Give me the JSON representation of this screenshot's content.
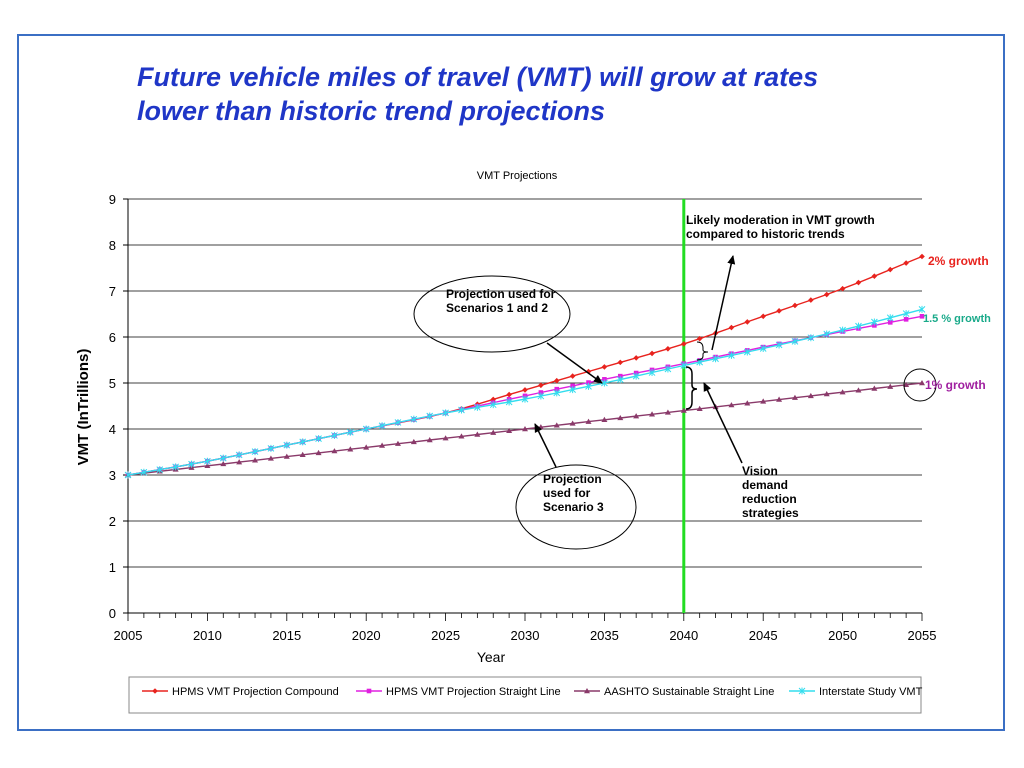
{
  "slide": {
    "title_line1": "Future vehicle miles of travel (VMT) will grow at rates",
    "title_line2": "lower than historic trend projections"
  },
  "annotations": {
    "moderation": "Likely moderation in VMT growth compared to historic trends",
    "scen12": "Projection used for Scenarios 1 and 2",
    "scen3": "Projection used for Scenario 3",
    "vision": "Vision demand reduction strategies",
    "g2": "2% growth",
    "g15": "1.5 % growth",
    "g1": "1% growth"
  },
  "colors": {
    "compound": "#e8231e",
    "straight": "#e020e0",
    "aashto": "#8a3a6a",
    "interstate": "#33ddee",
    "vline": "#22dd22",
    "g2_label": "#e8231e",
    "g15_label": "#1aaa8a",
    "g1_label": "#a020a0"
  },
  "chart_data": {
    "type": "line",
    "title": "VMT Projections",
    "xlabel": "Year",
    "ylabel": "VMT (InTrillions)",
    "xlim": [
      2005,
      2055
    ],
    "ylim": [
      0,
      9
    ],
    "xticks": [
      2005,
      2010,
      2015,
      2020,
      2025,
      2030,
      2035,
      2040,
      2045,
      2050,
      2055
    ],
    "yticks": [
      0,
      1,
      2,
      3,
      4,
      5,
      6,
      7,
      8,
      9
    ],
    "grid": true,
    "legend_position": "bottom",
    "marker_years": [
      2005,
      2006,
      2007,
      2008,
      2009,
      2010,
      2011,
      2012,
      2013,
      2014,
      2015,
      2016,
      2017,
      2018,
      2019,
      2020,
      2021,
      2022,
      2023,
      2024,
      2025,
      2026,
      2027,
      2028,
      2029,
      2030,
      2031,
      2032,
      2033,
      2034,
      2035,
      2036,
      2037,
      2038,
      2039,
      2040,
      2041,
      2042,
      2043,
      2044,
      2045,
      2046,
      2047,
      2048,
      2049,
      2050,
      2051,
      2052,
      2053,
      2054,
      2055
    ],
    "vertical_line_x": 2040,
    "series": [
      {
        "name": "HPMS VMT Projection Compound",
        "x": [
          2005,
          2010,
          2015,
          2020,
          2025,
          2030,
          2035,
          2040,
          2045,
          2050,
          2055
        ],
        "y": [
          3.0,
          3.3,
          3.65,
          4.0,
          4.35,
          4.85,
          5.35,
          5.85,
          6.45,
          7.05,
          7.75
        ]
      },
      {
        "name": "HPMS VMT Projection Straight Line",
        "x": [
          2005,
          2010,
          2015,
          2020,
          2025,
          2030,
          2035,
          2040,
          2045,
          2050,
          2055
        ],
        "y": [
          3.0,
          3.3,
          3.65,
          4.0,
          4.35,
          4.72,
          5.08,
          5.42,
          5.78,
          6.12,
          6.45
        ]
      },
      {
        "name": "AASHTO Sustainable Straight Line",
        "x": [
          2005,
          2010,
          2015,
          2020,
          2025,
          2030,
          2035,
          2040,
          2045,
          2050,
          2055
        ],
        "y": [
          3.0,
          3.2,
          3.4,
          3.6,
          3.8,
          4.0,
          4.2,
          4.4,
          4.6,
          4.8,
          5.0
        ]
      },
      {
        "name": "Interstate Study VMT",
        "x": [
          2005,
          2010,
          2015,
          2020,
          2025,
          2030,
          2035,
          2040,
          2045,
          2050,
          2055
        ],
        "y": [
          3.0,
          3.3,
          3.65,
          4.0,
          4.35,
          4.65,
          5.0,
          5.38,
          5.75,
          6.15,
          6.6
        ]
      }
    ]
  }
}
